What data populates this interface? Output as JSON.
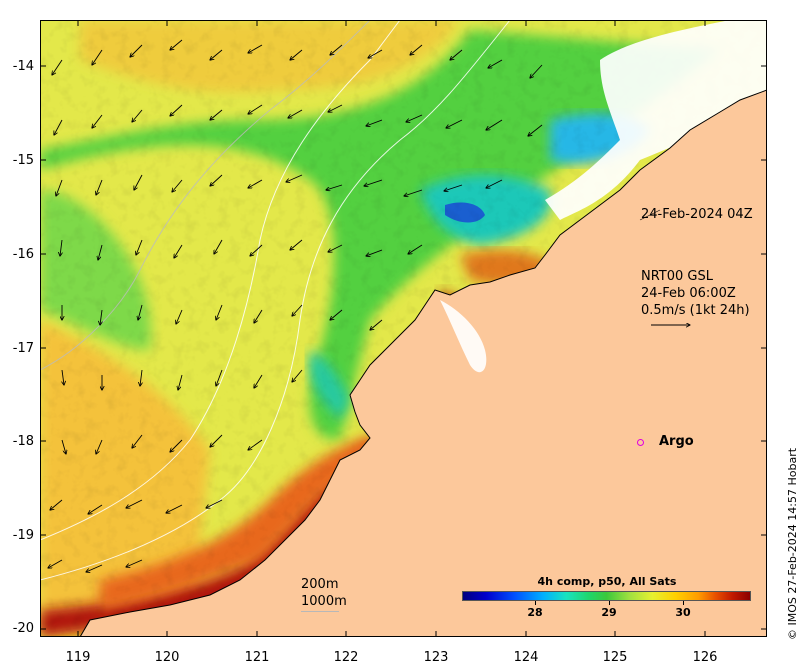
{
  "map": {
    "timestamp_label": "24-Feb-2024 04Z",
    "current_model_label": "NRT00 GSL",
    "current_time_label": "24-Feb 06:00Z",
    "current_scale_label": "0.5m/s (1kt 24h)",
    "argo_label": "Argo",
    "credit": "© IMOS 27-Feb-2024 14:57 Hobart",
    "y_ticks": [
      "-14",
      "-15",
      "-16",
      "-17",
      "-18",
      "-19",
      "-20"
    ],
    "x_ticks": [
      "119",
      "120",
      "121",
      "122",
      "123",
      "124",
      "125",
      "126"
    ],
    "isobath_labels": [
      "200m",
      "1000m"
    ],
    "colorbar": {
      "title": "4h comp, p50, All Sats",
      "ticks": [
        "28",
        "29",
        "30"
      ]
    },
    "colors": {
      "land": "#fcc89b",
      "isobath": "#e8e8e8",
      "argo": "#e000e0"
    }
  }
}
